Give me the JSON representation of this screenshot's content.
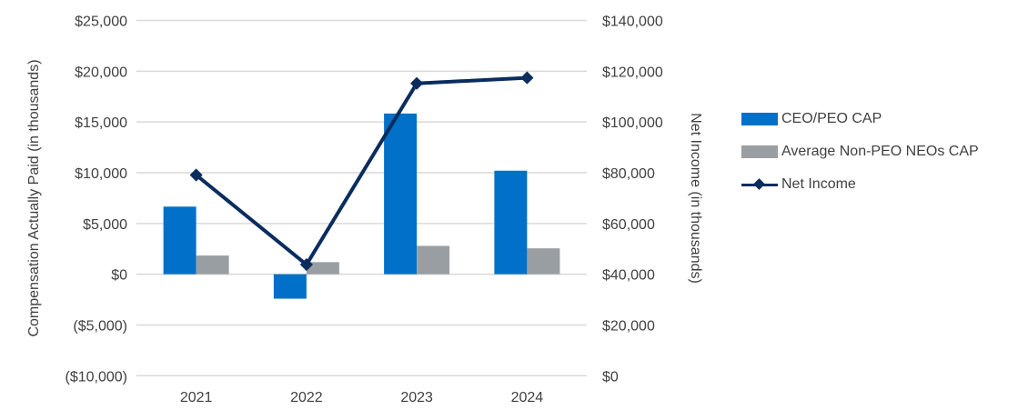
{
  "chart_data": {
    "type": "bar",
    "categories": [
      "2021",
      "2022",
      "2023",
      "2024"
    ],
    "series": [
      {
        "name": "CEO/PEO CAP",
        "type": "bar",
        "axis": "left",
        "color": "#0070c8",
        "values": [
          6660,
          -2410,
          15830,
          10200
        ]
      },
      {
        "name": "Average Non-PEO NEOs CAP",
        "type": "bar",
        "axis": "left",
        "color": "#999ea2",
        "values": [
          1840,
          1190,
          2790,
          2550
        ]
      },
      {
        "name": "Net Income",
        "type": "line",
        "axis": "right",
        "color": "#0a2d5e",
        "marker": "diamond",
        "values": [
          79100,
          43800,
          115200,
          117400
        ]
      }
    ],
    "ylabel": "Compensation Actually Paid (in thousands)",
    "y2label": "Net Income (in thousands)",
    "ylim": [
      -10000,
      25000
    ],
    "y2lim": [
      0,
      140000
    ],
    "yticks": [
      "$25,000",
      "$20,000",
      "$15,000",
      "$10,000",
      "$5,000",
      "$0",
      "($5,000)",
      "($10,000)"
    ],
    "y2ticks": [
      "$140,000",
      "$120,000",
      "$100,000",
      "$80,000",
      "$60,000",
      "$40,000",
      "$20,000",
      "$0"
    ],
    "grid": true,
    "legend": "right"
  }
}
